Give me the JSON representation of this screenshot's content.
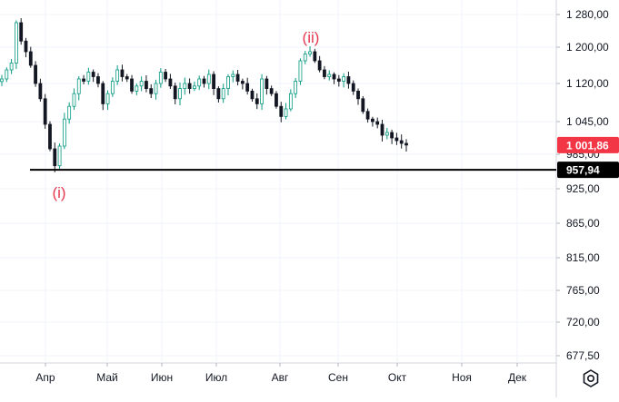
{
  "chart_data": {
    "type": "candlestick",
    "x_ticks": [
      "Апр",
      "Май",
      "Июн",
      "Июл",
      "Авг",
      "Сен",
      "Окт",
      "Ноя",
      "Дек"
    ],
    "y_ticks": [
      "1 280,00",
      "1 200,00",
      "1 120,00",
      "1 045,00",
      "985,00",
      "925,00",
      "865,00",
      "815,00",
      "765,00",
      "720,00",
      "677,50"
    ],
    "y_scale": "log",
    "grid": true,
    "current_price": {
      "label": "1 001,86",
      "value": 1001.86,
      "color": "#f23645"
    },
    "horizontal_line": {
      "label": "957,94",
      "value": 957.94,
      "color": "#000000"
    },
    "annotations": [
      {
        "text": "(i)",
        "near_value": 957.94,
        "color": "#e53950"
      },
      {
        "text": "(ii)",
        "near_value": 1190,
        "color": "#e53950"
      }
    ],
    "approx_closes": [
      1130,
      1150,
      1165,
      1260,
      1215,
      1190,
      1160,
      1120,
      1090,
      1040,
      995,
      965,
      1000,
      1050,
      1075,
      1100,
      1130,
      1125,
      1145,
      1135,
      1120,
      1080,
      1100,
      1125,
      1150,
      1135,
      1130,
      1105,
      1115,
      1125,
      1110,
      1100,
      1120,
      1145,
      1130,
      1115,
      1090,
      1110,
      1120,
      1110,
      1115,
      1130,
      1120,
      1140,
      1110,
      1090,
      1110,
      1135,
      1140,
      1125,
      1120,
      1105,
      1090,
      1080,
      1130,
      1110,
      1100,
      1075,
      1055,
      1070,
      1100,
      1125,
      1170,
      1185,
      1190,
      1170,
      1150,
      1135,
      1140,
      1130,
      1125,
      1135,
      1120,
      1105,
      1090,
      1065,
      1050,
      1045,
      1040,
      1020,
      1025,
      1015,
      1010,
      1005,
      1001.86
    ]
  },
  "ui": {
    "settings_icon": "gear-icon"
  }
}
